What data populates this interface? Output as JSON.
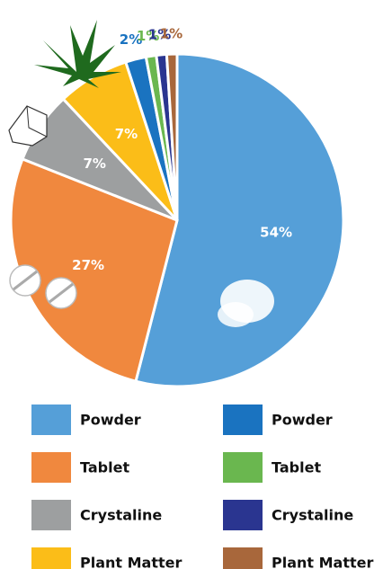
{
  "chart_data": {
    "type": "pie",
    "categories": [
      "Powder",
      "Tablet",
      "Crystaline",
      "Plant Matter",
      "Powder",
      "Tablet",
      "Crystaline",
      "Plant Matter"
    ],
    "values": [
      54,
      27,
      7,
      7,
      2,
      1,
      1,
      1
    ],
    "value_labels": [
      "54%",
      "27%",
      "7%",
      "7%",
      "2%",
      "1%",
      "1%",
      "1%"
    ],
    "colors": [
      "#559fd8",
      "#f0883e",
      "#9d9fa0",
      "#fbbd18",
      "#1a73c0",
      "#6ab74f",
      "#2a3590",
      "#a8673b"
    ]
  }
}
